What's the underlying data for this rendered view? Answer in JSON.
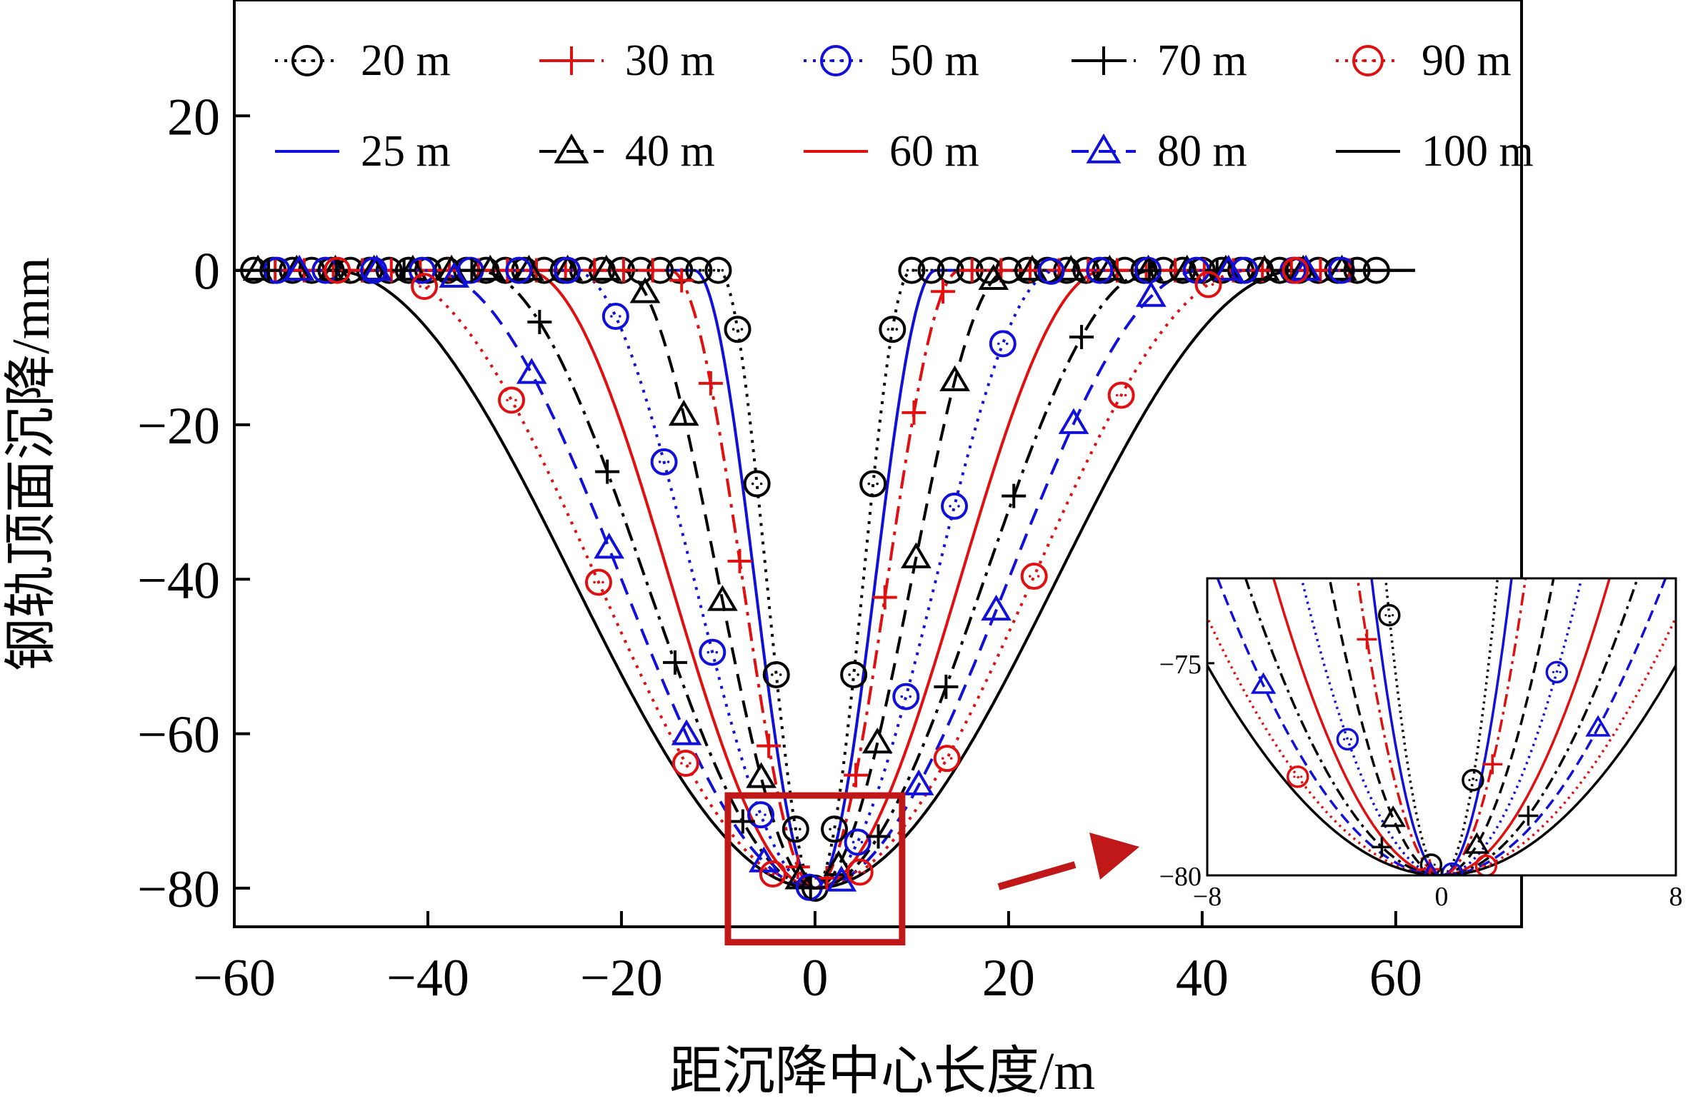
{
  "chart_data": {
    "type": "line",
    "title": "",
    "xlabel": "距沉降中心长度/m",
    "ylabel": "钢轨顶面沉降/mm",
    "xlim": [
      -60,
      73
    ],
    "ylim": [
      -85,
      35
    ],
    "x_ticks": [
      -60,
      -40,
      -20,
      0,
      20,
      40,
      60
    ],
    "x_tick_labels": [
      "−60",
      "−40",
      "−20",
      "0",
      "20",
      "40",
      "60"
    ],
    "y_ticks": [
      20,
      0,
      -20,
      -40,
      -60,
      -80
    ],
    "y_tick_labels": [
      "20",
      "0",
      "−20",
      "−40",
      "−60",
      "−80"
    ],
    "grid": false,
    "legend_position": "top",
    "peak_settlement": -80,
    "series": [
      {
        "name": "20 m",
        "wavelength": 20,
        "color": "#000000",
        "dash": "dotted",
        "marker": "circle"
      },
      {
        "name": "25 m",
        "wavelength": 25,
        "color": "#1010d8",
        "dash": "solid",
        "marker": "none"
      },
      {
        "name": "30 m",
        "wavelength": 30,
        "color": "#e01010",
        "dash": "dashdot",
        "marker": "plus"
      },
      {
        "name": "40 m",
        "wavelength": 40,
        "color": "#000000",
        "dash": "dashed",
        "marker": "triangle"
      },
      {
        "name": "50 m",
        "wavelength": 50,
        "color": "#1010d8",
        "dash": "dotted",
        "marker": "circle"
      },
      {
        "name": "60 m",
        "wavelength": 60,
        "color": "#e01010",
        "dash": "solid",
        "marker": "none"
      },
      {
        "name": "70 m",
        "wavelength": 70,
        "color": "#000000",
        "dash": "dashdot",
        "marker": "plus"
      },
      {
        "name": "80 m",
        "wavelength": 80,
        "color": "#1010d8",
        "dash": "dashed",
        "marker": "triangle"
      },
      {
        "name": "90 m",
        "wavelength": 90,
        "color": "#e01010",
        "dash": "dotted",
        "marker": "circle"
      },
      {
        "name": "100 m",
        "wavelength": 100,
        "color": "#000000",
        "dash": "solid",
        "marker": "none"
      }
    ],
    "inset": {
      "xlim": [
        -8,
        8
      ],
      "ylim": [
        -80,
        -73
      ],
      "x_tick_labels": [
        "−8",
        "0",
        "8"
      ],
      "y_tick_labels": [
        "−75",
        "−80"
      ],
      "highlight_box_x": [
        -9,
        9
      ],
      "highlight_box_y": [
        -87,
        -68
      ]
    },
    "colors": {
      "red": "#e01010",
      "blue": "#1010d8",
      "black": "#000000",
      "box": "#c01818"
    }
  }
}
